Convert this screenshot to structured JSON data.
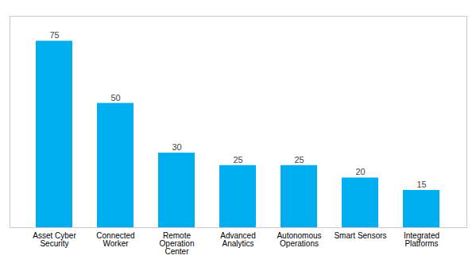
{
  "chart_data": {
    "type": "bar",
    "categories": [
      "Asset Cyber Security",
      "Connected Worker",
      "Remote Operation Center",
      "Advanced Analytics",
      "Autonomous Operations",
      "Smart Sensors",
      "Integrated Platforms"
    ],
    "values": [
      75,
      50,
      30,
      25,
      25,
      20,
      15
    ],
    "color": "#00AEEF",
    "ylim": [
      0,
      85
    ],
    "yticks": [],
    "data_labels": true,
    "tick_labels": "x",
    "grid": false
  }
}
